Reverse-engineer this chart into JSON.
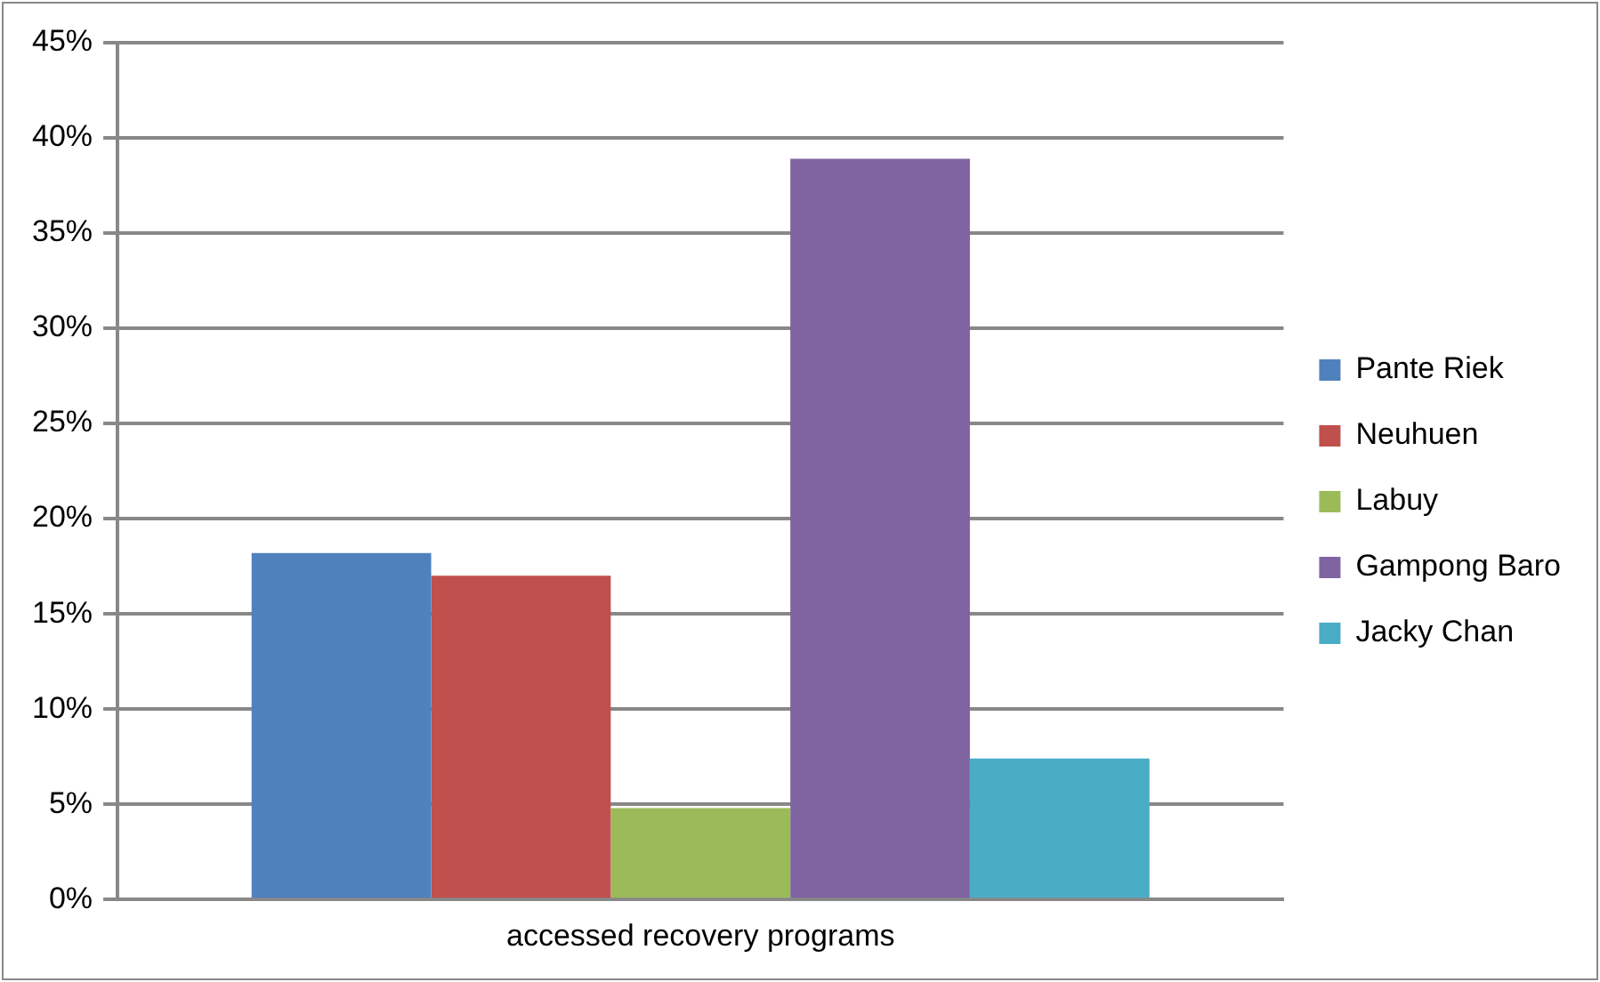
{
  "chart_data": {
    "type": "bar",
    "categories": [
      "accessed recovery programs"
    ],
    "series": [
      {
        "name": "Pante Riek",
        "color": "#4f81bd",
        "values": [
          18.2
        ]
      },
      {
        "name": "Neuhuen",
        "color": "#c0504d",
        "values": [
          17.0
        ]
      },
      {
        "name": "Labuy",
        "color": "#9bbb59",
        "values": [
          4.8
        ]
      },
      {
        "name": "Gampong Baro",
        "color": "#8064a2",
        "values": [
          38.9
        ]
      },
      {
        "name": "Jacky Chan",
        "color": "#4bacc6",
        "values": [
          7.4
        ]
      }
    ],
    "ylim": [
      0,
      45
    ],
    "yticks": [
      {
        "value": 0,
        "label": "0%"
      },
      {
        "value": 5,
        "label": "5%"
      },
      {
        "value": 10,
        "label": "10%"
      },
      {
        "value": 15,
        "label": "15%"
      },
      {
        "value": 20,
        "label": "20%"
      },
      {
        "value": 25,
        "label": "25%"
      },
      {
        "value": 30,
        "label": "30%"
      },
      {
        "value": 35,
        "label": "35%"
      },
      {
        "value": 40,
        "label": "40%"
      },
      {
        "value": 45,
        "label": "45%"
      }
    ],
    "grid": "y",
    "legend": "right"
  }
}
